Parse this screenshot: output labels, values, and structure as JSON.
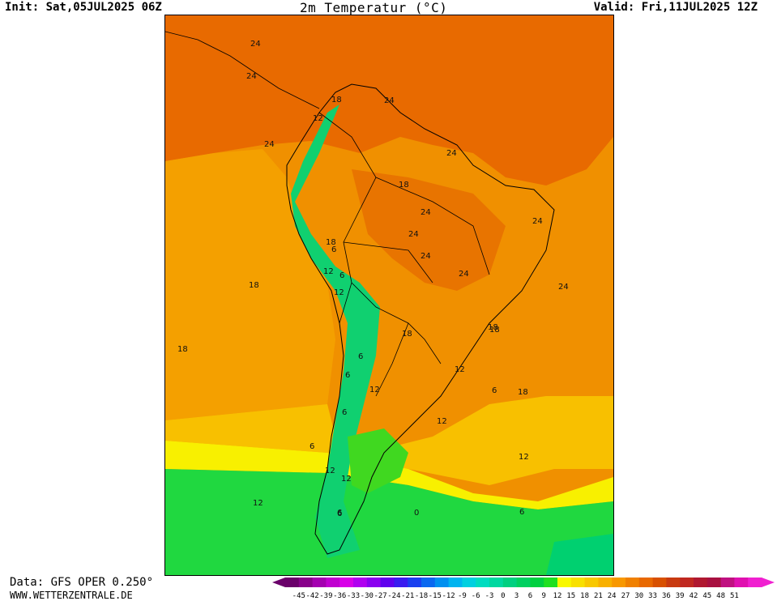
{
  "header": {
    "init": "Init: Sat,05JUL2025 06Z",
    "title": "2m Temperatur (°C)",
    "valid": "Valid: Fri,11JUL2025 12Z"
  },
  "footer": {
    "data_source": "Data: GFS OPER 0.250°",
    "website": "WWW.WETTERZENTRALE.DE"
  },
  "map": {
    "region": "South America",
    "contour_labels": [
      "24",
      "24",
      "18",
      "12",
      "24",
      "24",
      "24",
      "18",
      "24",
      "24",
      "24",
      "24",
      "24",
      "24",
      "18",
      "6",
      "12",
      "6",
      "12",
      "18",
      "18",
      "18",
      "18",
      "6",
      "18",
      "12",
      "12",
      "6",
      "12",
      "6",
      "12",
      "12",
      "12",
      "18",
      "12",
      "6",
      "0",
      "6",
      "6",
      "6",
      "6"
    ]
  },
  "legend": {
    "ticks": [
      "-45",
      "-42",
      "-39",
      "-36",
      "-33",
      "-30",
      "-27",
      "-24",
      "-21",
      "-18",
      "-15",
      "-12",
      "-9",
      "-6",
      "-3",
      "0",
      "3",
      "6",
      "9",
      "12",
      "15",
      "18",
      "21",
      "24",
      "27",
      "30",
      "33",
      "36",
      "39",
      "42",
      "45",
      "48",
      "51"
    ],
    "colors": [
      "#6a006a",
      "#88008a",
      "#a400b0",
      "#c000d0",
      "#d800e8",
      "#b000f0",
      "#8a00f0",
      "#6000ee",
      "#3a1cf0",
      "#1a40f0",
      "#0a68f0",
      "#0090f0",
      "#00b4f0",
      "#00d0e0",
      "#00dcc0",
      "#00d8a0",
      "#00d080",
      "#00d060",
      "#00d040",
      "#20e020",
      "#f8f800",
      "#f8e000",
      "#f8c800",
      "#f8b000",
      "#f89800",
      "#f08000",
      "#e86800",
      "#d85000",
      "#c83a10",
      "#c02820",
      "#b01830",
      "#a81040",
      "#c01080",
      "#e010b0",
      "#f020d0"
    ]
  }
}
